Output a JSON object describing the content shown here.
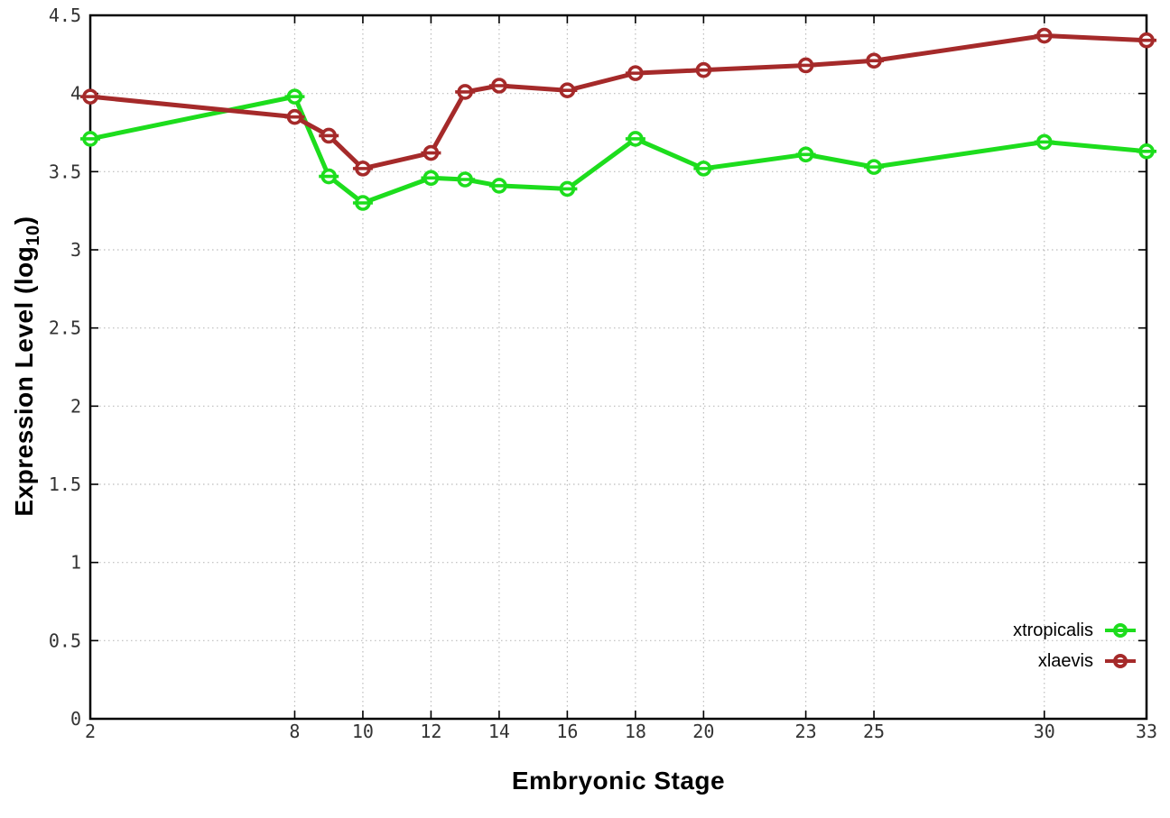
{
  "chart_data": {
    "type": "line",
    "title": "",
    "xlabel": "Embryonic Stage",
    "ylabel": "Expression Level (log10)",
    "ylabel_parts": {
      "main": "Expression Level (log",
      "sub": "10",
      "close": ")"
    },
    "xlim": [
      2,
      33
    ],
    "ylim": [
      0,
      4.5
    ],
    "grid": true,
    "legend_position": "bottom-right-inside",
    "marker": "open-circle-with-errorbar",
    "x": [
      2,
      8,
      9,
      10,
      12,
      13,
      14,
      16,
      18,
      20,
      23,
      25,
      30,
      33
    ],
    "series": [
      {
        "name": "xtropicalis",
        "color": "#1ddd1d",
        "values": [
          3.71,
          3.98,
          3.47,
          3.3,
          3.46,
          3.45,
          3.41,
          3.39,
          3.71,
          3.52,
          3.61,
          3.53,
          3.69,
          3.63
        ]
      },
      {
        "name": "xlaevis",
        "color": "#a52a2a",
        "values": [
          3.98,
          3.85,
          3.73,
          3.52,
          3.62,
          4.01,
          4.05,
          4.02,
          4.13,
          4.15,
          4.18,
          4.21,
          4.37,
          4.34
        ]
      }
    ],
    "xticks": {
      "values": [
        2,
        8,
        10,
        12,
        14,
        16,
        18,
        20,
        23,
        25,
        30,
        33
      ],
      "labels": [
        "2",
        "8",
        "10",
        "12",
        "14",
        "16",
        "18",
        "20",
        "23",
        "25",
        "30",
        "33"
      ]
    },
    "yticks": {
      "values": [
        0,
        0.5,
        1,
        1.5,
        2,
        2.5,
        3,
        3.5,
        4,
        4.5
      ],
      "labels": [
        "0",
        "0.5",
        "1",
        "1.5",
        "2",
        "2.5",
        "3",
        "3.5",
        "4",
        "4.5"
      ]
    },
    "colors": {
      "grid": "#bcbcbc",
      "border": "#000000",
      "tick_text": "#333333"
    }
  }
}
